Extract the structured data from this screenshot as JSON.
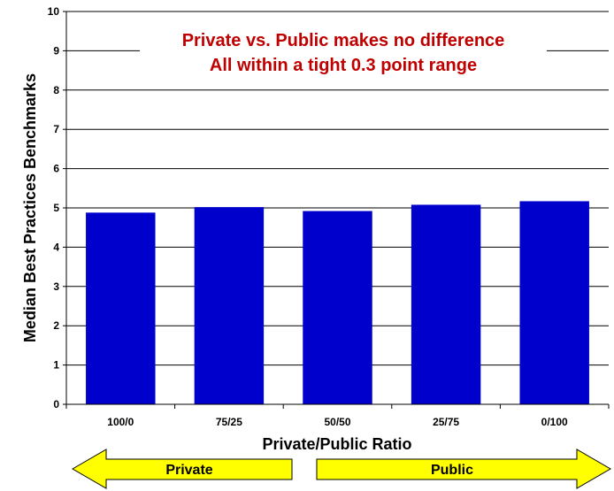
{
  "chart_data": {
    "type": "bar",
    "categories": [
      "100/0",
      "75/25",
      "50/50",
      "25/75",
      "0/100"
    ],
    "values": [
      4.88,
      5.02,
      4.92,
      5.08,
      5.17
    ],
    "ylim": [
      0,
      10
    ],
    "yticks": [
      0,
      1,
      2,
      3,
      4,
      5,
      6,
      7,
      8,
      9,
      10
    ],
    "ylabel": "Median Best Practices Benchmarks",
    "xlabel": "Private/Public Ratio",
    "grid": true,
    "bar_color": "#0000cc",
    "annotation": {
      "lines": [
        "Private vs. Public makes no difference",
        "All within a tight 0.3 point range"
      ],
      "color": "#c00000"
    }
  },
  "arrows": {
    "left_label": "Private",
    "right_label": "Public",
    "fill_color": "#ffff00"
  }
}
